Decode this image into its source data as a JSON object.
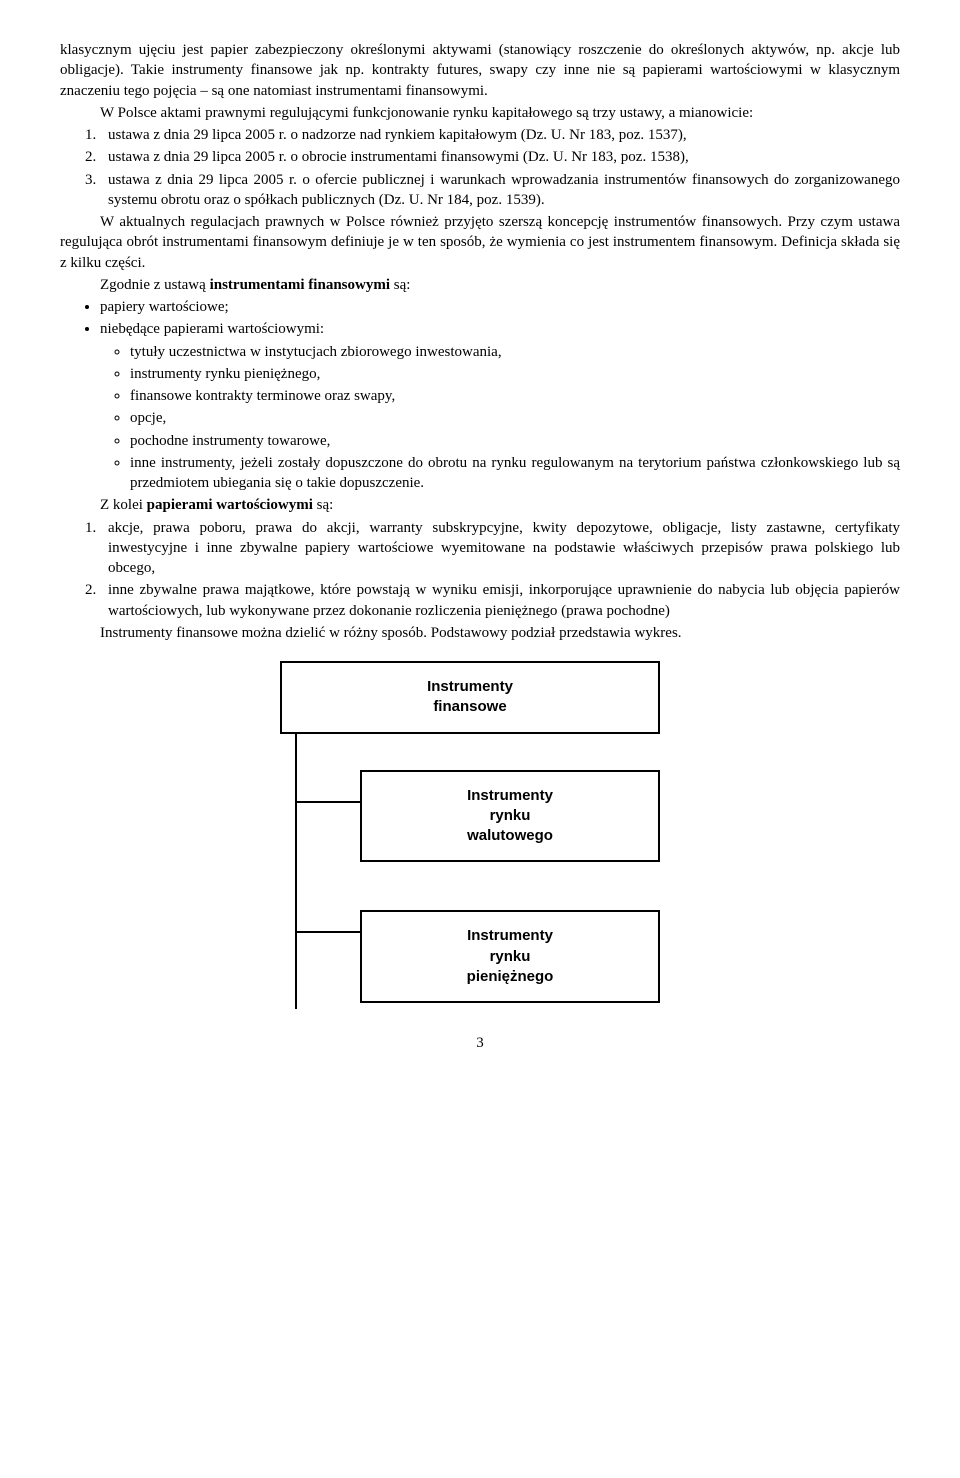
{
  "para1": "klasycznym ujęciu jest papier zabezpieczony określonymi aktywami (stanowiący roszczenie do określonych aktywów, np. akcje lub obligacje). Takie instrumenty finansowe jak np. kontrakty futures, swapy czy inne nie są papierami wartościowymi w klasycznym znaczeniu tego pojęcia – są one natomiast instrumentami finansowymi.",
  "para2": "W Polsce aktami prawnymi regulującymi funkcjonowanie rynku kapitałowego są trzy ustawy, a mianowicie:",
  "list1": {
    "i1": "ustawa z dnia 29 lipca 2005 r. o nadzorze nad rynkiem kapitałowym (Dz. U. Nr 183, poz. 1537),",
    "i2": "ustawa z dnia 29 lipca 2005 r. o obrocie instrumentami finansowymi (Dz. U. Nr 183, poz. 1538),",
    "i3": "ustawa z dnia 29 lipca 2005 r. o ofercie publicznej i warunkach wprowadzania instrumentów finansowych do zorganizowanego systemu obrotu oraz o spółkach publicznych (Dz. U. Nr 184, poz. 1539)."
  },
  "para3": "W aktualnych regulacjach prawnych w Polsce również przyjęto szerszą koncepcję instrumentów finansowych. Przy czym ustawa regulująca obrót instrumentami finansowym definiuje je w ten sposób, że wymienia co jest instrumentem finansowym. Definicja składa się z kilku części.",
  "para4a": "Zgodnie z ustawą ",
  "para4b": "instrumentami finansowymi",
  "para4c": " są:",
  "bul1": "papiery wartościowe;",
  "bul2": "niebędące papierami wartościowymi:",
  "circ": {
    "c1": "tytuły uczestnictwa w instytucjach zbiorowego inwestowania,",
    "c2": "instrumenty rynku pieniężnego,",
    "c3": "finansowe kontrakty terminowe oraz swapy,",
    "c4": "opcje,",
    "c5": "pochodne instrumenty towarowe,",
    "c6": "inne instrumenty, jeżeli zostały dopuszczone do obrotu na rynku regulowanym na terytorium państwa członkowskiego lub są przedmiotem ubiegania się o takie dopuszczenie."
  },
  "para5a": "Z kolei ",
  "para5b": "papierami wartościowymi",
  "para5c": " są:",
  "list2": {
    "i1": "akcje, prawa poboru, prawa do akcji, warranty subskrypcyjne, kwity depozytowe, obligacje, listy zastawne, certyfikaty inwestycyjne i inne zbywalne papiery wartościowe wyemitowane na podstawie właściwych przepisów prawa polskiego lub obcego,",
    "i2": "inne zbywalne prawa majątkowe, które powstają w wyniku emisji, inkorporujące uprawnienie do nabycia lub objęcia papierów wartościowych, lub wykonywane przez dokonanie rozliczenia pieniężnego (prawa pochodne)"
  },
  "para6": "Instrumenty finansowe można dzielić w różny sposób. Podstawowy podział przedstawia wykres.",
  "diagram": {
    "b1l1": "Instrumenty",
    "b1l2": "finansowe",
    "b2l1": "Instrumenty",
    "b2l2": "rynku",
    "b2l3": "walutowego",
    "b3l1": "Instrumenty",
    "b3l2": "rynku",
    "b3l3": "pieniężnego"
  },
  "pagenum": "3"
}
